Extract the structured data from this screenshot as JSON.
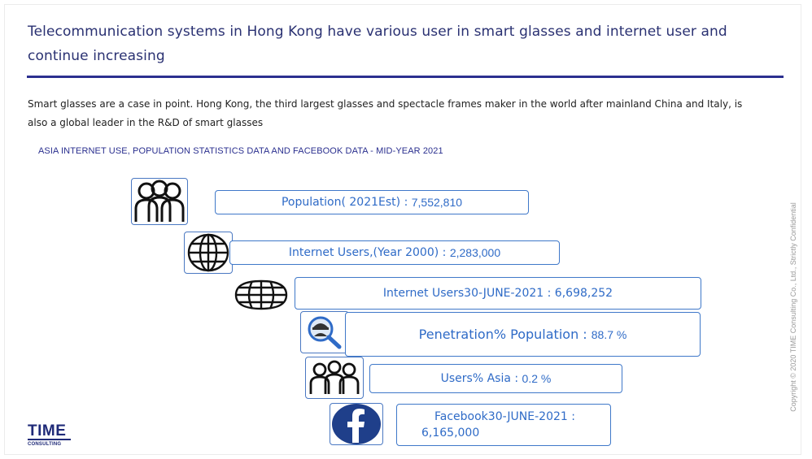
{
  "slide": {
    "title": "Telecommunication systems in Hong Kong have various user in smart glasses and internet  user and continue increasing",
    "body": "Smart glasses are a case in point. Hong Kong, the third largest glasses and spectacle frames maker in the world after mainland China and Italy, is also a global leader in the R&D of smart glasses",
    "subheading": "ASIA INTERNET USE, POPULATION STATISTICS DATA AND FACEBOOK DATA - MID-YEAR 2021",
    "copyright": "Copyright © 2020 TIME Consulting Co., Ltd.,  Strictly Confidential"
  },
  "logo": {
    "main": "TIME",
    "sub": "CONSULTING"
  },
  "stats": {
    "population": {
      "label": "Population( 2021Est) : ",
      "value": "7,552,810",
      "icon": "people-group-icon"
    },
    "internet_2000": {
      "label": "Internet Users,(Year 2000) : ",
      "value": "2,283,000",
      "icon": "globe-icon"
    },
    "internet_2021": {
      "label": "Internet Users30-JUNE-2021 : 6,698,252",
      "value": "",
      "icon": "world-grid-icon"
    },
    "penetration": {
      "label": "Penetration% Population : ",
      "value": "88.7 %",
      "icon": "magnifier-person-icon"
    },
    "users_asia": {
      "label": "Users% Asia : ",
      "value": "0.2 %",
      "icon": "users-group-icon"
    },
    "facebook": {
      "line1": "Facebook30-JUNE-2021 :",
      "line2": "6,165,000",
      "icon": "facebook-icon"
    }
  },
  "colors": {
    "accent": "#2b2f8f",
    "box_border": "#3f78c9",
    "box_text": "#2f6bc7",
    "facebook": "#1f3f8a"
  }
}
